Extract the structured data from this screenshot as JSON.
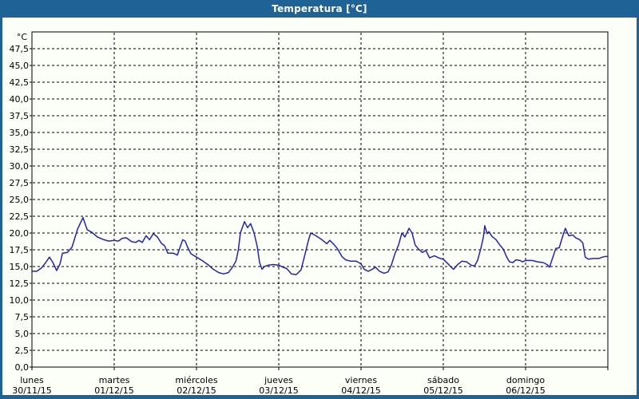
{
  "window": {
    "title": "Temperatura [°C]"
  },
  "colors": {
    "titlebar_and_border": "#1F6396",
    "content_background": "#FCFEF8",
    "line": "#2323B8",
    "grid": "#000000",
    "text": "#000000"
  },
  "chart_data": {
    "type": "line",
    "title": "Temperatura [°C]",
    "ylabel_unit": "°C",
    "ylim": [
      0,
      47.5
    ],
    "y_tick_step": 2.5,
    "decimal_separator": ",",
    "grid": "dashed",
    "legend": "none",
    "y_tick_labels": [
      "47,5",
      "45,0",
      "42,5",
      "40,0",
      "37,5",
      "35,0",
      "32,5",
      "30,0",
      "27,5",
      "25,0",
      "22,5",
      "20,0",
      "17,5",
      "15,0",
      "12,5",
      "10,0",
      "7,5",
      "5,0",
      "2,5",
      "0,0"
    ],
    "x_days": [
      {
        "name": "lunes",
        "date": "30/11/15"
      },
      {
        "name": "martes",
        "date": "01/12/15"
      },
      {
        "name": "miércoles",
        "date": "02/12/15"
      },
      {
        "name": "jueves",
        "date": "03/12/15"
      },
      {
        "name": "viernes",
        "date": "04/12/15"
      },
      {
        "name": "sábado",
        "date": "05/12/15"
      },
      {
        "name": "domingo",
        "date": "06/12/15"
      }
    ],
    "x_hours_range": [
      0,
      168
    ],
    "series": [
      {
        "name": "Temperatura",
        "unit": "°C",
        "points": [
          [
            0,
            14.3
          ],
          [
            1.4,
            14.3
          ],
          [
            2.8,
            14.8
          ],
          [
            4,
            15.6
          ],
          [
            5.1,
            16.4
          ],
          [
            6.1,
            15.6
          ],
          [
            7.2,
            14.4
          ],
          [
            8.2,
            15.4
          ],
          [
            8.9,
            17
          ],
          [
            10.3,
            17.1
          ],
          [
            11.7,
            17.9
          ],
          [
            13.3,
            20.6
          ],
          [
            14.9,
            22.3
          ],
          [
            16.1,
            20.5
          ],
          [
            17.5,
            20.1
          ],
          [
            19.1,
            19.4
          ],
          [
            21,
            19
          ],
          [
            22.4,
            18.8
          ],
          [
            24,
            18.9
          ],
          [
            25.2,
            18.8
          ],
          [
            26.3,
            19.2
          ],
          [
            27.5,
            19.3
          ],
          [
            29.1,
            18.7
          ],
          [
            30.3,
            18.6
          ],
          [
            31.2,
            18.9
          ],
          [
            32.2,
            18.6
          ],
          [
            33.3,
            19.6
          ],
          [
            34.3,
            19
          ],
          [
            35.4,
            19.9
          ],
          [
            36.6,
            19.4
          ],
          [
            37.7,
            18.5
          ],
          [
            38.7,
            18.1
          ],
          [
            39.6,
            17
          ],
          [
            41.2,
            17
          ],
          [
            42.4,
            16.7
          ],
          [
            43.3,
            18
          ],
          [
            44,
            19
          ],
          [
            44.7,
            18.8
          ],
          [
            45.4,
            17.9
          ],
          [
            46.4,
            16.9
          ],
          [
            48,
            16.4
          ],
          [
            49.6,
            15.9
          ],
          [
            51.3,
            15.3
          ],
          [
            52.9,
            14.6
          ],
          [
            54.5,
            14.1
          ],
          [
            55.9,
            13.9
          ],
          [
            57.3,
            14.1
          ],
          [
            58.5,
            14.9
          ],
          [
            59.5,
            15.8
          ],
          [
            60.2,
            17.5
          ],
          [
            60.8,
            20
          ],
          [
            62,
            21.7
          ],
          [
            62.9,
            20.8
          ],
          [
            63.8,
            21.4
          ],
          [
            64.8,
            20
          ],
          [
            65.7,
            18
          ],
          [
            66.4,
            15.6
          ],
          [
            67.1,
            14.6
          ],
          [
            67.8,
            15
          ],
          [
            69,
            15.2
          ],
          [
            70.4,
            15.3
          ],
          [
            72,
            15.2
          ],
          [
            73.2,
            14.9
          ],
          [
            74.3,
            14.7
          ],
          [
            75.7,
            13.9
          ],
          [
            77.1,
            13.8
          ],
          [
            78.5,
            14.5
          ],
          [
            79.7,
            16.9
          ],
          [
            80.6,
            18.8
          ],
          [
            81.3,
            20
          ],
          [
            82.5,
            19.7
          ],
          [
            83.4,
            19.4
          ],
          [
            84.6,
            19
          ],
          [
            86,
            18.4
          ],
          [
            86.9,
            18.9
          ],
          [
            88.1,
            18.3
          ],
          [
            89.2,
            17.6
          ],
          [
            90.4,
            16.5
          ],
          [
            91.5,
            16
          ],
          [
            93,
            15.8
          ],
          [
            94.6,
            15.8
          ],
          [
            96,
            15.4
          ],
          [
            96.9,
            14.6
          ],
          [
            98.1,
            14.3
          ],
          [
            99.3,
            14.6
          ],
          [
            100.2,
            14.9
          ],
          [
            101.4,
            14.3
          ],
          [
            102.7,
            14
          ],
          [
            103.9,
            14.2
          ],
          [
            104.9,
            15.3
          ],
          [
            105.8,
            16.8
          ],
          [
            107,
            18.3
          ],
          [
            107.9,
            20
          ],
          [
            108.8,
            19.4
          ],
          [
            110,
            20.7
          ],
          [
            110.9,
            20
          ],
          [
            111.8,
            18.2
          ],
          [
            112.8,
            17.6
          ],
          [
            113.9,
            17.1
          ],
          [
            114.9,
            17.4
          ],
          [
            116,
            16.3
          ],
          [
            117.4,
            16.6
          ],
          [
            118.6,
            16.3
          ],
          [
            120,
            16.1
          ],
          [
            121.2,
            15.5
          ],
          [
            122.3,
            14.9
          ],
          [
            123,
            14.6
          ],
          [
            124.2,
            15.3
          ],
          [
            125.4,
            15.8
          ],
          [
            126.8,
            15.7
          ],
          [
            128.1,
            15.2
          ],
          [
            129.1,
            15.1
          ],
          [
            130,
            15.9
          ],
          [
            131,
            17.8
          ],
          [
            131.7,
            19.4
          ],
          [
            132.1,
            21.1
          ],
          [
            132.8,
            19.9
          ],
          [
            133.3,
            20.2
          ],
          [
            134.2,
            19.5
          ],
          [
            135.4,
            19
          ],
          [
            136.5,
            18.2
          ],
          [
            137.5,
            17.6
          ],
          [
            138.4,
            16.5
          ],
          [
            139.3,
            15.7
          ],
          [
            140.3,
            15.6
          ],
          [
            141.2,
            16
          ],
          [
            142.4,
            15.9
          ],
          [
            143.1,
            15.7
          ],
          [
            144,
            15.9
          ],
          [
            145.9,
            15.9
          ],
          [
            147.5,
            15.7
          ],
          [
            149.1,
            15.6
          ],
          [
            150.3,
            15.3
          ],
          [
            151,
            14.9
          ],
          [
            151.9,
            16.3
          ],
          [
            152.8,
            17.7
          ],
          [
            153.8,
            17.8
          ],
          [
            154.7,
            19.3
          ],
          [
            155.6,
            20.7
          ],
          [
            156.6,
            19.6
          ],
          [
            157.8,
            19.7
          ],
          [
            158.6,
            19.3
          ],
          [
            159.8,
            19
          ],
          [
            160.7,
            18.5
          ],
          [
            161.4,
            16.4
          ],
          [
            162.3,
            16.1
          ],
          [
            163.7,
            16.2
          ],
          [
            165.4,
            16.2
          ],
          [
            166.4,
            16.4
          ],
          [
            167.3,
            16.5
          ],
          [
            168,
            16.5
          ]
        ]
      }
    ]
  }
}
